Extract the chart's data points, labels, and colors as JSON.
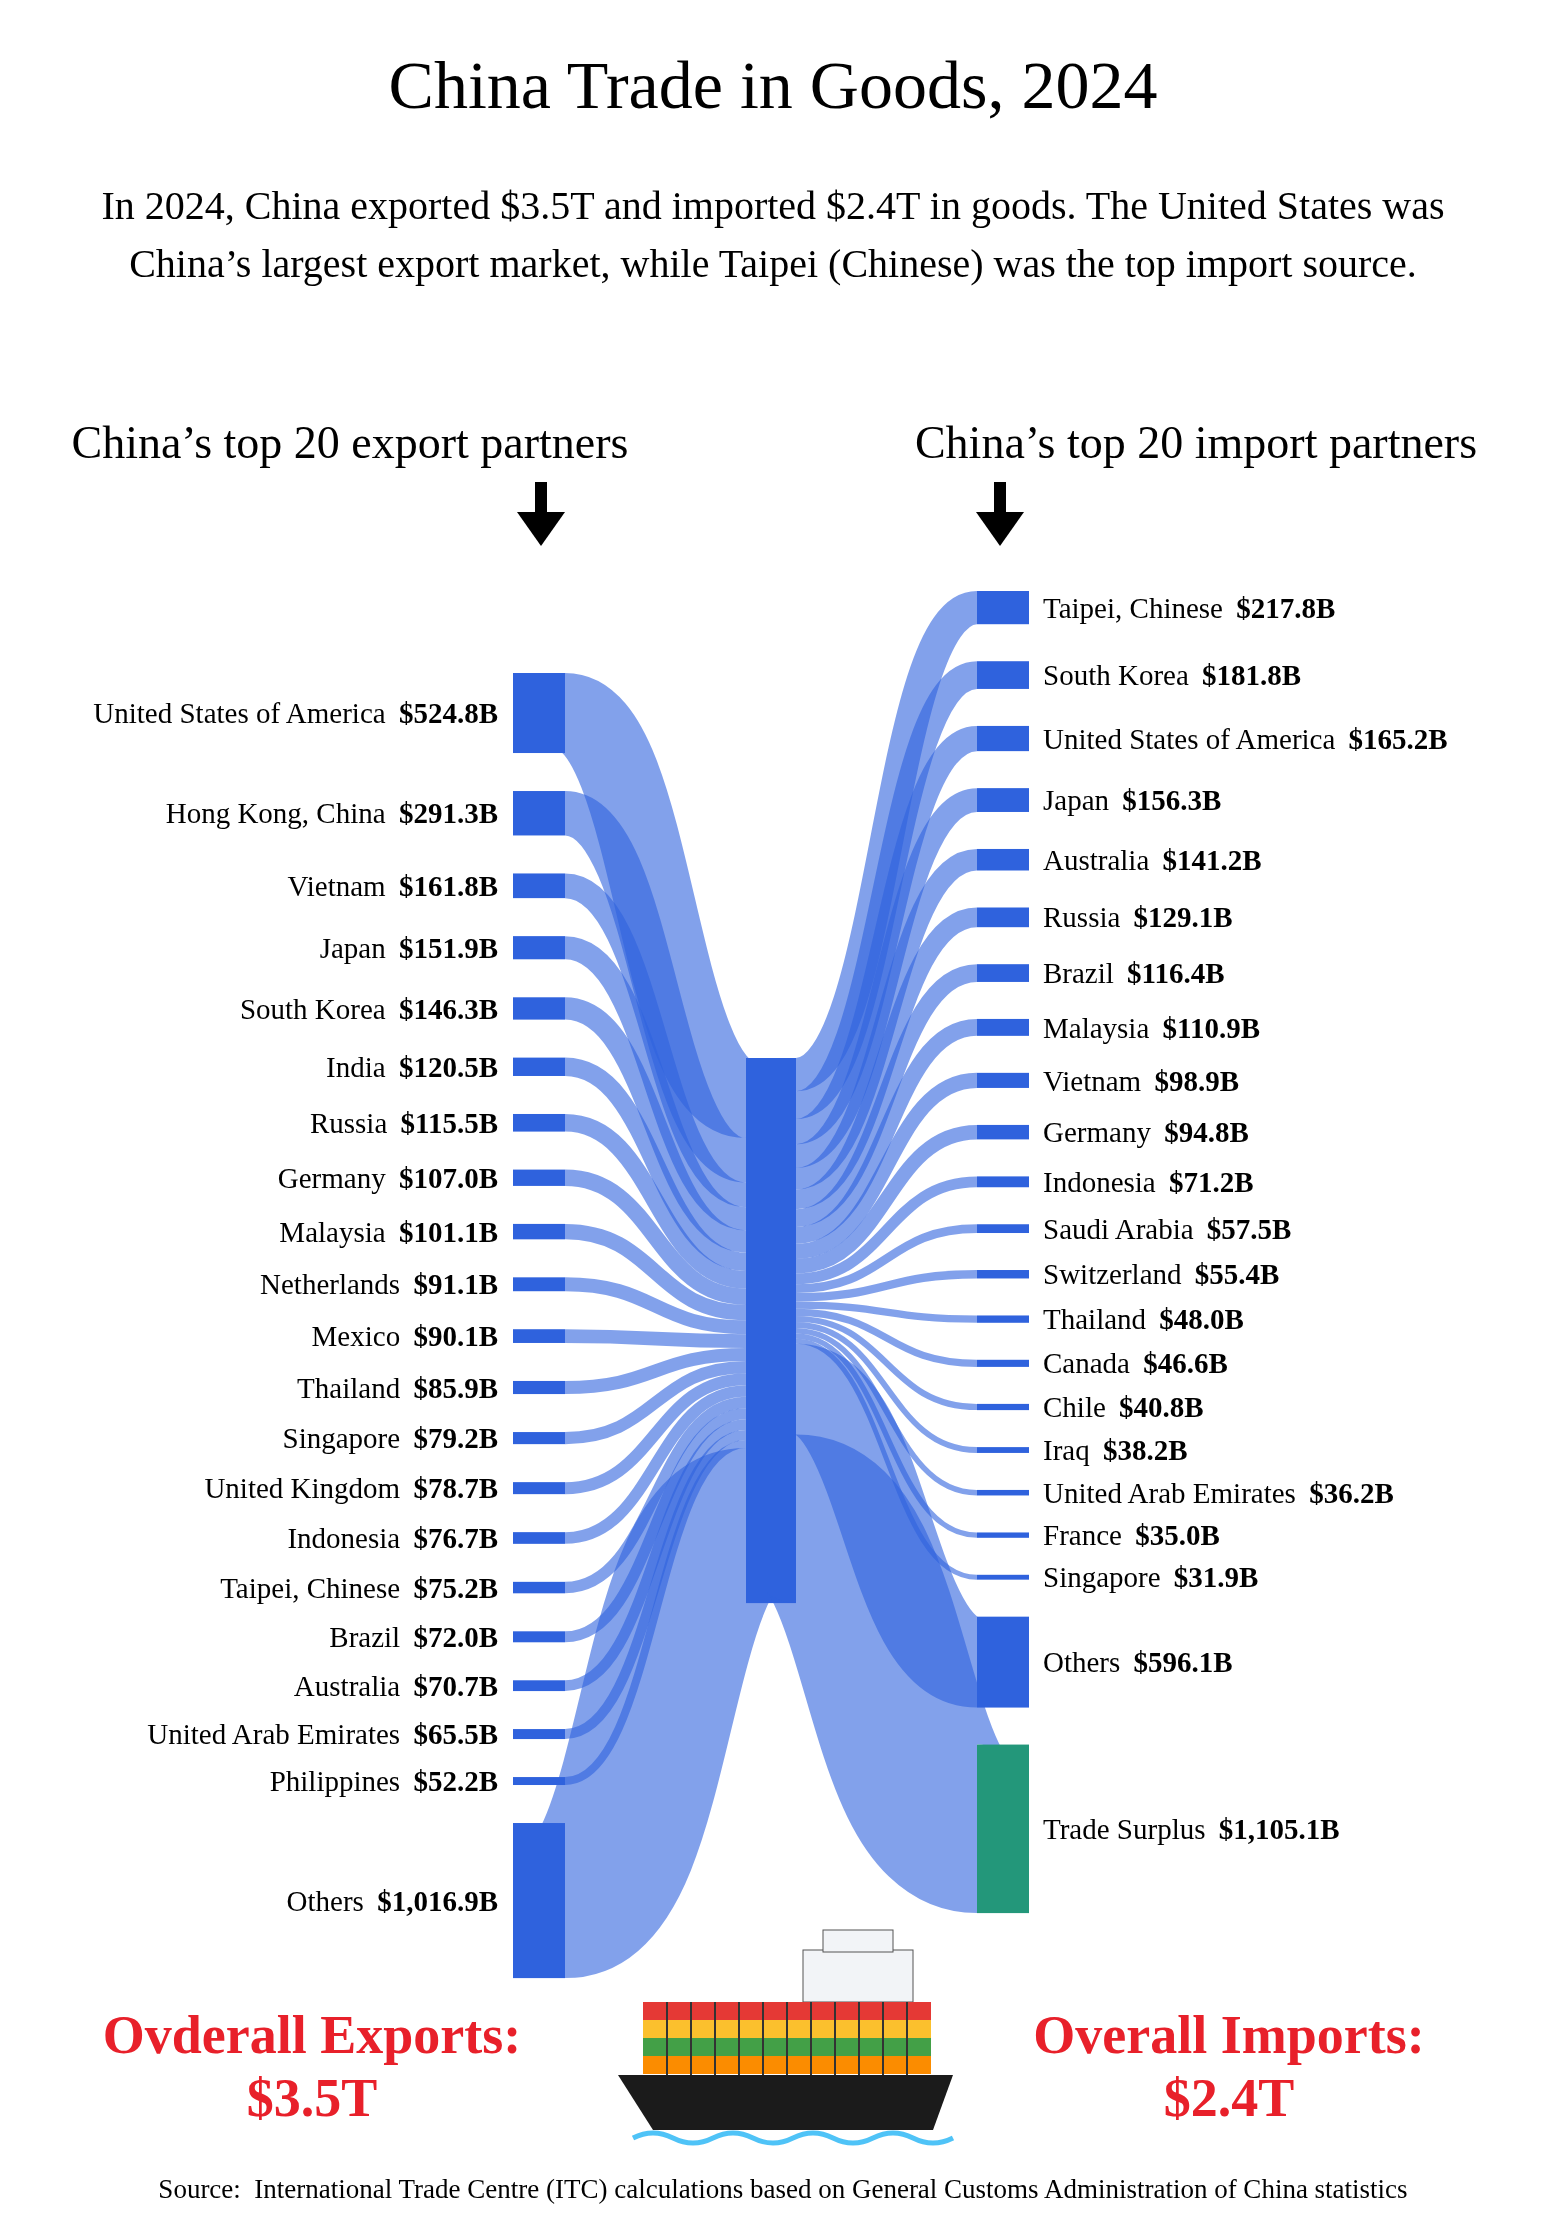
{
  "chart_data": [
    {
      "type": "other",
      "title": "China Trade in Goods, 2024",
      "subtitle": "In 2024, China exported $3.5T and imported $2.4T in goods. The United States was China’s largest export market, while Taipei (Chinese) was the top import source.",
      "categories": [
        "United States of America",
        "Hong Kong, China",
        "Vietnam",
        "Japan",
        "South Korea",
        "India",
        "Russia",
        "Germany",
        "Malaysia",
        "Netherlands",
        "Mexico",
        "Thailand",
        "Singapore",
        "United Kingdom",
        "Indonesia",
        "Taipei, Chinese",
        "Brazil",
        "Australia",
        "United Arab Emirates",
        "Philippines",
        "Others"
      ],
      "values": [
        524.8,
        291.3,
        161.8,
        151.9,
        146.3,
        120.5,
        115.5,
        107.0,
        101.1,
        91.1,
        90.1,
        85.9,
        79.2,
        78.7,
        76.7,
        75.2,
        72.0,
        70.7,
        65.5,
        52.2,
        1016.9
      ],
      "value_labels": [
        "$524.8B",
        "$291.3B",
        "$161.8B",
        "$151.9B",
        "$146.3B",
        "$120.5B",
        "$115.5B",
        "$107.0B",
        "$101.1B",
        "$91.1B",
        "$90.1B",
        "$85.9B",
        "$79.2B",
        "$78.7B",
        "$76.7B",
        "$75.2B",
        "$72.0B",
        "$70.7B",
        "$65.5B",
        "$52.2B",
        "$1,016.9B"
      ],
      "colors": [
        "#2f62dd",
        "#2f62dd",
        "#2f62dd",
        "#2f62dd",
        "#2f62dd",
        "#2f62dd",
        "#2f62dd",
        "#2f62dd",
        "#2f62dd",
        "#2f62dd",
        "#2f62dd",
        "#2f62dd",
        "#2f62dd",
        "#2f62dd",
        "#2f62dd",
        "#2f62dd",
        "#2f62dd",
        "#2f62dd",
        "#2f62dd",
        "#2f62dd",
        "#2f62dd"
      ],
      "annotations": [
        "China’s top 20 export partners",
        "Ovderall Exports:",
        "$3.5T",
        "Source:  International Trade Centre (ITC) calculations based on General Customs Administration of China statistics"
      ]
    },
    {
      "type": "other",
      "categories": [
        "Taipei, Chinese",
        "South Korea",
        "United States of America",
        "Japan",
        "Australia",
        "Russia",
        "Brazil",
        "Malaysia",
        "Vietnam",
        "Germany",
        "Indonesia",
        "Saudi Arabia",
        "Switzerland",
        "Thailand",
        "Canada",
        "Chile",
        "Iraq",
        "United Arab Emirates",
        "France",
        "Singapore",
        "Others",
        "Trade Surplus"
      ],
      "values": [
        217.8,
        181.8,
        165.2,
        156.3,
        141.2,
        129.1,
        116.4,
        110.9,
        98.9,
        94.8,
        71.2,
        57.5,
        55.4,
        48.0,
        46.6,
        40.8,
        38.2,
        36.2,
        35.0,
        31.9,
        596.1,
        1105.1
      ],
      "value_labels": [
        "$217.8B",
        "$181.8B",
        "$165.2B",
        "$156.3B",
        "$141.2B",
        "$129.1B",
        "$116.4B",
        "$110.9B",
        "$98.9B",
        "$94.8B",
        "$71.2B",
        "$57.5B",
        "$55.4B",
        "$48.0B",
        "$46.6B",
        "$40.8B",
        "$38.2B",
        "$36.2B",
        "$35.0B",
        "$31.9B",
        "$596.1B",
        "$1,105.1B"
      ],
      "colors": [
        "#2f62dd",
        "#2f62dd",
        "#2f62dd",
        "#2f62dd",
        "#2f62dd",
        "#2f62dd",
        "#2f62dd",
        "#2f62dd",
        "#2f62dd",
        "#2f62dd",
        "#2f62dd",
        "#2f62dd",
        "#2f62dd",
        "#2f62dd",
        "#2f62dd",
        "#2f62dd",
        "#2f62dd",
        "#2f62dd",
        "#2f62dd",
        "#2f62dd",
        "#2f62dd",
        "#23977a"
      ],
      "annotations": [
        "China’s top 20 import partners",
        "Overall Imports:",
        "$2.4T"
      ]
    }
  ]
}
